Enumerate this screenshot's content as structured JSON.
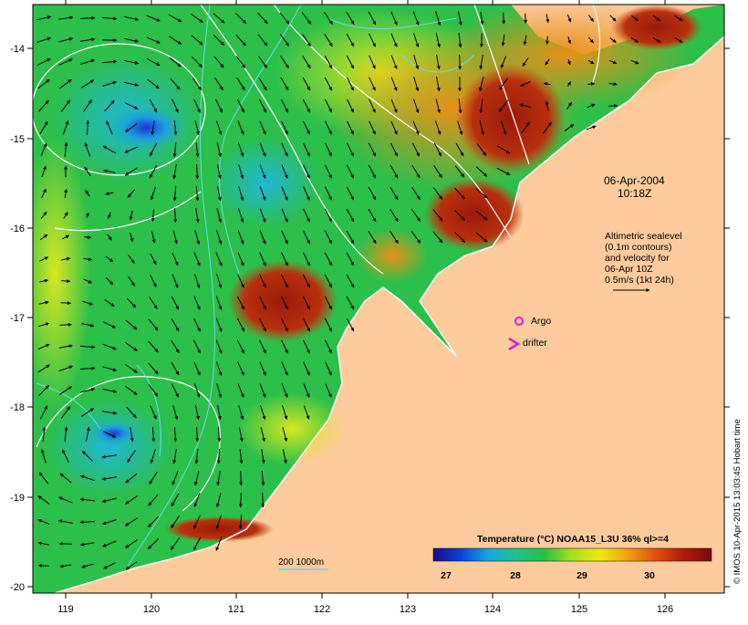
{
  "map": {
    "date": "06-Apr-2004",
    "time": "10:18Z",
    "note_lines": [
      "Altimetric sealevel",
      "(0.1m contours)",
      "and velocity for",
      "06-Apr 10Z",
      "0.5m/s (1kt 24h)"
    ],
    "legend_argo": "Argo",
    "legend_drifter": "drifter",
    "depth_label": "200  1000m",
    "credit": "© IMOS 10-Apr-2015 13:03:45 Hobart time",
    "colorbar_title": "Temperature (°C) NOAA15_L3U 36% ql>=4",
    "colorbar_ticks": [
      "27",
      "28",
      "29",
      "30"
    ],
    "colorbar_colors": [
      "#1b0a8a",
      "#0a44d8",
      "#18a8e0",
      "#22c08a",
      "#28c040",
      "#a8e020",
      "#f0e810",
      "#f0a010",
      "#e05010",
      "#b01a0a",
      "#7a0a0a"
    ],
    "x_ticks": [
      "119",
      "120",
      "121",
      "122",
      "123",
      "124",
      "125",
      "126"
    ],
    "y_ticks": [
      "-14",
      "-15",
      "-16",
      "-17",
      "-18",
      "-19",
      "-20"
    ],
    "colors": {
      "land": "#fdcb9c",
      "argo": "#e01cc8",
      "drifter": "#e01cc8",
      "contour": "#ffffff",
      "isobath": "#66ddee",
      "arrow": "#000000"
    }
  }
}
